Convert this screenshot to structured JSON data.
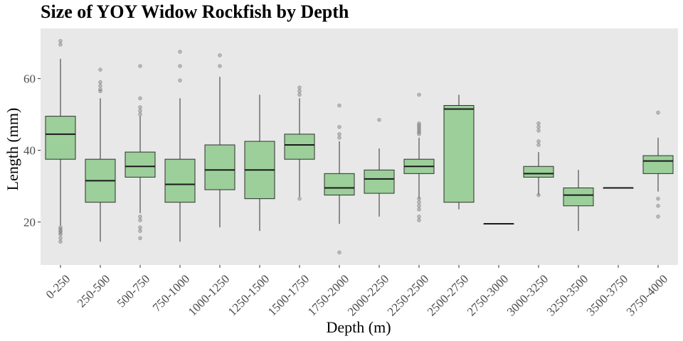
{
  "chart_data": {
    "type": "box",
    "title": "Size of YOY Widow Rockfish by Depth",
    "xlabel": "Depth (m)",
    "ylabel": "Length (mm)",
    "ylim": [
      8,
      74
    ],
    "yticks": [
      20,
      40,
      60
    ],
    "grid": false,
    "colors": {
      "panel": "#e8e8e8",
      "box_fill": "#9ccf9a",
      "box_stroke": "#2f2f2f",
      "outlier": "#888888"
    },
    "categories": [
      "0-250",
      "250-500",
      "500-750",
      "750-1000",
      "1000-1250",
      "1250-1500",
      "1500-1750",
      "1750-2000",
      "2000-2250",
      "2250-2500",
      "2500-2750",
      "2750-3000",
      "3000-3250",
      "3250-3500",
      "3500-3750",
      "3750-4000"
    ],
    "boxes": [
      {
        "category": "0-250",
        "min": 19,
        "q1": 37.5,
        "median": 44.5,
        "q3": 49.5,
        "max": 65.5,
        "outliers": [
          70.5,
          69.5,
          18.5,
          18,
          17.5,
          17,
          16.5,
          15.5,
          14.5
        ]
      },
      {
        "category": "250-500",
        "min": 14.5,
        "q1": 25.5,
        "median": 31.5,
        "q3": 37.5,
        "max": 54.5,
        "outliers": [
          62.5,
          59,
          58,
          57,
          56.5
        ]
      },
      {
        "category": "500-750",
        "min": 22.5,
        "q1": 32.5,
        "median": 35.5,
        "q3": 39.5,
        "max": 49.5,
        "outliers": [
          63.5,
          54.5,
          52,
          51,
          50,
          21.5,
          20.5,
          18.5,
          17.5,
          15.5
        ]
      },
      {
        "category": "750-1000",
        "min": 14.5,
        "q1": 25.5,
        "median": 30.5,
        "q3": 37.5,
        "max": 54.5,
        "outliers": [
          67.5,
          63.5,
          59.5
        ]
      },
      {
        "category": "1000-1250",
        "min": 18.5,
        "q1": 29,
        "median": 34.5,
        "q3": 41.5,
        "max": 60.5,
        "outliers": [
          66.5,
          63.5
        ]
      },
      {
        "category": "1250-1500",
        "min": 17.5,
        "q1": 26.5,
        "median": 34.5,
        "q3": 42.5,
        "max": 55.5,
        "outliers": []
      },
      {
        "category": "1500-1750",
        "min": 27,
        "q1": 37.5,
        "median": 41.5,
        "q3": 44.5,
        "max": 54.5,
        "outliers": [
          57.5,
          56.5,
          55.5,
          26.5
        ]
      },
      {
        "category": "1750-2000",
        "min": 19.5,
        "q1": 27.5,
        "median": 29.5,
        "q3": 33.5,
        "max": 42.5,
        "outliers": [
          52.5,
          46.5,
          44.5,
          43.5,
          11.5
        ]
      },
      {
        "category": "2000-2250",
        "min": 21.5,
        "q1": 28,
        "median": 32,
        "q3": 34.5,
        "max": 40.5,
        "outliers": [
          48.5
        ]
      },
      {
        "category": "2250-2500",
        "min": 26.5,
        "q1": 33.5,
        "median": 35.5,
        "q3": 37.5,
        "max": 43.5,
        "outliers": [
          55.5,
          47.5,
          47,
          46.5,
          46,
          45.5,
          45,
          44.5,
          26.5,
          25.5,
          24.5,
          23.5,
          21.5,
          20.5
        ]
      },
      {
        "category": "2500-2750",
        "min": 23.5,
        "q1": 25.5,
        "median": 51.5,
        "q3": 52.5,
        "max": 55.5,
        "outliers": []
      },
      {
        "category": "2750-3000",
        "min": 19.5,
        "q1": 19.5,
        "median": 19.5,
        "q3": 19.5,
        "max": 19.5,
        "outliers": []
      },
      {
        "category": "3000-3250",
        "min": 27.5,
        "q1": 32.5,
        "median": 33.5,
        "q3": 35.5,
        "max": 39.5,
        "outliers": [
          47.5,
          46.5,
          45.5,
          42.5,
          41.5,
          27.5
        ]
      },
      {
        "category": "3250-3500",
        "min": 17.5,
        "q1": 24.5,
        "median": 27.5,
        "q3": 29.5,
        "max": 34.5,
        "outliers": []
      },
      {
        "category": "3500-3750",
        "min": 29.5,
        "q1": 29.5,
        "median": 29.5,
        "q3": 29.5,
        "max": 29.5,
        "outliers": []
      },
      {
        "category": "3750-4000",
        "min": 28.5,
        "q1": 33.5,
        "median": 37,
        "q3": 38.5,
        "max": 43.5,
        "outliers": [
          50.5,
          26.5,
          24.5,
          21.5
        ]
      }
    ]
  }
}
